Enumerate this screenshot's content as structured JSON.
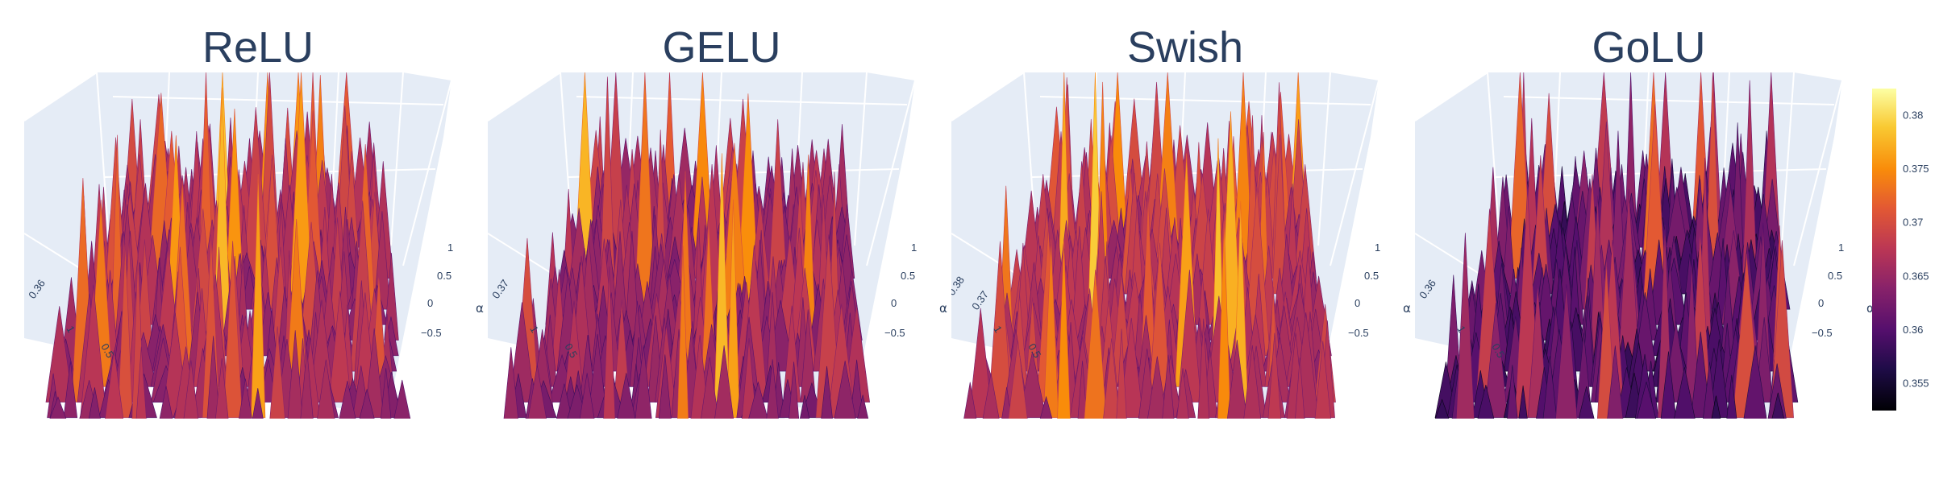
{
  "chart_data": [
    {
      "type": "surface",
      "title": "ReLU",
      "axis_titles": {
        "y": "α"
      },
      "y_ticks": [
        "1",
        "0.5",
        "0",
        "−0.5"
      ],
      "x_ticks": [
        "1",
        "0.5"
      ],
      "z_ticks": [
        "0.36"
      ],
      "z_range": [
        0.353,
        0.382
      ],
      "level": 0.362,
      "spikiness": 1.0
    },
    {
      "type": "surface",
      "title": "GELU",
      "axis_titles": {
        "y": "α"
      },
      "y_ticks": [
        "1",
        "0.5",
        "0",
        "−0.5"
      ],
      "x_ticks": [
        "1",
        "0.5"
      ],
      "z_ticks": [
        "0.37"
      ],
      "z_range": [
        0.353,
        0.382
      ],
      "level": 0.361,
      "spikiness": 0.85
    },
    {
      "type": "surface",
      "title": "Swish",
      "axis_titles": {
        "y": "α"
      },
      "y_ticks": [
        "1",
        "0.5",
        "0",
        "−0.5"
      ],
      "x_ticks": [
        "1",
        "0.5"
      ],
      "z_ticks": [
        "0.38",
        "0.37"
      ],
      "z_range": [
        0.353,
        0.382
      ],
      "level": 0.363,
      "spikiness": 1.0
    },
    {
      "type": "surface",
      "title": "GoLU",
      "axis_titles": {
        "y": "α"
      },
      "y_ticks": [
        "1",
        "0.5",
        "0",
        "−0.5"
      ],
      "x_ticks": [
        "1",
        "0.5"
      ],
      "z_ticks": [
        "0.36"
      ],
      "z_range": [
        0.353,
        0.382
      ],
      "level": 0.356,
      "spikiness": 0.7
    }
  ],
  "colorbar": {
    "colorscale": "inferno",
    "range": [
      0.3525,
      0.3825
    ],
    "ticks": [
      "0.38",
      "0.375",
      "0.37",
      "0.365",
      "0.36",
      "0.355"
    ],
    "tick_values": [
      0.38,
      0.375,
      0.37,
      0.365,
      0.36,
      0.355
    ]
  },
  "colors": {
    "scene_background": "#e5ecf6",
    "grid": "#ffffff",
    "text": "#2a3f5f"
  }
}
